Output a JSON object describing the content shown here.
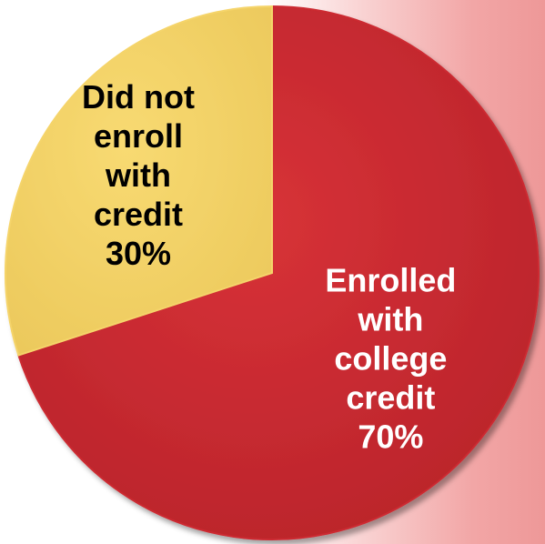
{
  "chart_data": {
    "type": "pie",
    "slices": [
      {
        "label_lines": [
          "Enrolled",
          "with",
          "college",
          "credit"
        ],
        "value": 70,
        "value_label": "70%",
        "color": "#cc2a30",
        "label_color": "#ffffff"
      },
      {
        "label_lines": [
          "Did not",
          "enroll",
          "with",
          "credit"
        ],
        "value": 30,
        "value_label": "30%",
        "color": "#f5d46a",
        "label_color": "#000000"
      }
    ],
    "start_angle_deg": 0,
    "direction": "clockwise",
    "legend": "none",
    "labels": "inside"
  }
}
